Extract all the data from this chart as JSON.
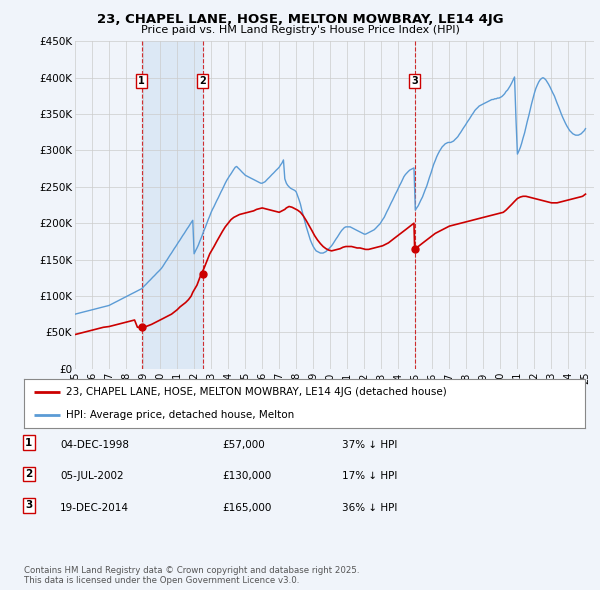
{
  "title": "23, CHAPEL LANE, HOSE, MELTON MOWBRAY, LE14 4JG",
  "subtitle": "Price paid vs. HM Land Registry's House Price Index (HPI)",
  "hpi_color": "#5b9bd5",
  "price_color": "#cc0000",
  "vline_color": "#cc0000",
  "background_color": "#f0f4fa",
  "plot_bg_color": "#f0f4fa",
  "shade_color": "#dce8f5",
  "grid_color": "#cccccc",
  "ylim": [
    0,
    450000
  ],
  "yticks": [
    0,
    50000,
    100000,
    150000,
    200000,
    250000,
    300000,
    350000,
    400000,
    450000
  ],
  "ytick_labels": [
    "£0",
    "£50K",
    "£100K",
    "£150K",
    "£200K",
    "£250K",
    "£300K",
    "£350K",
    "£400K",
    "£450K"
  ],
  "xlim_start": 1995.0,
  "xlim_end": 2025.5,
  "purchases": [
    {
      "date_num": 1998.92,
      "price": 57000,
      "label": "1"
    },
    {
      "date_num": 2002.51,
      "price": 130000,
      "label": "2"
    },
    {
      "date_num": 2014.96,
      "price": 165000,
      "label": "3"
    }
  ],
  "shade_x1": 1998.92,
  "shade_x2": 2002.51,
  "legend_price_label": "23, CHAPEL LANE, HOSE, MELTON MOWBRAY, LE14 4JG (detached house)",
  "legend_hpi_label": "HPI: Average price, detached house, Melton",
  "table_rows": [
    {
      "num": "1",
      "date": "04-DEC-1998",
      "price": "£57,000",
      "change": "37% ↓ HPI"
    },
    {
      "num": "2",
      "date": "05-JUL-2002",
      "price": "£130,000",
      "change": "17% ↓ HPI"
    },
    {
      "num": "3",
      "date": "19-DEC-2014",
      "price": "£165,000",
      "change": "36% ↓ HPI"
    }
  ],
  "footer": "Contains HM Land Registry data © Crown copyright and database right 2025.\nThis data is licensed under the Open Government Licence v3.0.",
  "hpi_data_years": [
    1995.0,
    1995.08,
    1995.17,
    1995.25,
    1995.33,
    1995.42,
    1995.5,
    1995.58,
    1995.67,
    1995.75,
    1995.83,
    1995.92,
    1996.0,
    1996.08,
    1996.17,
    1996.25,
    1996.33,
    1996.42,
    1996.5,
    1996.58,
    1996.67,
    1996.75,
    1996.83,
    1996.92,
    1997.0,
    1997.08,
    1997.17,
    1997.25,
    1997.33,
    1997.42,
    1997.5,
    1997.58,
    1997.67,
    1997.75,
    1997.83,
    1997.92,
    1998.0,
    1998.08,
    1998.17,
    1998.25,
    1998.33,
    1998.42,
    1998.5,
    1998.58,
    1998.67,
    1998.75,
    1998.83,
    1998.92,
    1999.0,
    1999.08,
    1999.17,
    1999.25,
    1999.33,
    1999.42,
    1999.5,
    1999.58,
    1999.67,
    1999.75,
    1999.83,
    1999.92,
    2000.0,
    2000.08,
    2000.17,
    2000.25,
    2000.33,
    2000.42,
    2000.5,
    2000.58,
    2000.67,
    2000.75,
    2000.83,
    2000.92,
    2001.0,
    2001.08,
    2001.17,
    2001.25,
    2001.33,
    2001.42,
    2001.5,
    2001.58,
    2001.67,
    2001.75,
    2001.83,
    2001.92,
    2002.0,
    2002.08,
    2002.17,
    2002.25,
    2002.33,
    2002.42,
    2002.5,
    2002.58,
    2002.67,
    2002.75,
    2002.83,
    2002.92,
    2003.0,
    2003.08,
    2003.17,
    2003.25,
    2003.33,
    2003.42,
    2003.5,
    2003.58,
    2003.67,
    2003.75,
    2003.83,
    2003.92,
    2004.0,
    2004.08,
    2004.17,
    2004.25,
    2004.33,
    2004.42,
    2004.5,
    2004.58,
    2004.67,
    2004.75,
    2004.83,
    2004.92,
    2005.0,
    2005.08,
    2005.17,
    2005.25,
    2005.33,
    2005.42,
    2005.5,
    2005.58,
    2005.67,
    2005.75,
    2005.83,
    2005.92,
    2006.0,
    2006.08,
    2006.17,
    2006.25,
    2006.33,
    2006.42,
    2006.5,
    2006.58,
    2006.67,
    2006.75,
    2006.83,
    2006.92,
    2007.0,
    2007.08,
    2007.17,
    2007.25,
    2007.33,
    2007.42,
    2007.5,
    2007.58,
    2007.67,
    2007.75,
    2007.83,
    2007.92,
    2008.0,
    2008.08,
    2008.17,
    2008.25,
    2008.33,
    2008.42,
    2008.5,
    2008.58,
    2008.67,
    2008.75,
    2008.83,
    2008.92,
    2009.0,
    2009.08,
    2009.17,
    2009.25,
    2009.33,
    2009.42,
    2009.5,
    2009.58,
    2009.67,
    2009.75,
    2009.83,
    2009.92,
    2010.0,
    2010.08,
    2010.17,
    2010.25,
    2010.33,
    2010.42,
    2010.5,
    2010.58,
    2010.67,
    2010.75,
    2010.83,
    2010.92,
    2011.0,
    2011.08,
    2011.17,
    2011.25,
    2011.33,
    2011.42,
    2011.5,
    2011.58,
    2011.67,
    2011.75,
    2011.83,
    2011.92,
    2012.0,
    2012.08,
    2012.17,
    2012.25,
    2012.33,
    2012.42,
    2012.5,
    2012.58,
    2012.67,
    2012.75,
    2012.83,
    2012.92,
    2013.0,
    2013.08,
    2013.17,
    2013.25,
    2013.33,
    2013.42,
    2013.5,
    2013.58,
    2013.67,
    2013.75,
    2013.83,
    2013.92,
    2014.0,
    2014.08,
    2014.17,
    2014.25,
    2014.33,
    2014.42,
    2014.5,
    2014.58,
    2014.67,
    2014.75,
    2014.83,
    2014.92,
    2015.0,
    2015.08,
    2015.17,
    2015.25,
    2015.33,
    2015.42,
    2015.5,
    2015.58,
    2015.67,
    2015.75,
    2015.83,
    2015.92,
    2016.0,
    2016.08,
    2016.17,
    2016.25,
    2016.33,
    2016.42,
    2016.5,
    2016.58,
    2016.67,
    2016.75,
    2016.83,
    2016.92,
    2017.0,
    2017.08,
    2017.17,
    2017.25,
    2017.33,
    2017.42,
    2017.5,
    2017.58,
    2017.67,
    2017.75,
    2017.83,
    2017.92,
    2018.0,
    2018.08,
    2018.17,
    2018.25,
    2018.33,
    2018.42,
    2018.5,
    2018.58,
    2018.67,
    2018.75,
    2018.83,
    2018.92,
    2019.0,
    2019.08,
    2019.17,
    2019.25,
    2019.33,
    2019.42,
    2019.5,
    2019.58,
    2019.67,
    2019.75,
    2019.83,
    2019.92,
    2020.0,
    2020.08,
    2020.17,
    2020.25,
    2020.33,
    2020.42,
    2020.5,
    2020.58,
    2020.67,
    2020.75,
    2020.83,
    2020.92,
    2021.0,
    2021.08,
    2021.17,
    2021.25,
    2021.33,
    2021.42,
    2021.5,
    2021.58,
    2021.67,
    2021.75,
    2021.83,
    2021.92,
    2022.0,
    2022.08,
    2022.17,
    2022.25,
    2022.33,
    2022.42,
    2022.5,
    2022.58,
    2022.67,
    2022.75,
    2022.83,
    2022.92,
    2023.0,
    2023.08,
    2023.17,
    2023.25,
    2023.33,
    2023.42,
    2023.5,
    2023.58,
    2023.67,
    2023.75,
    2023.83,
    2023.92,
    2024.0,
    2024.08,
    2024.17,
    2024.25,
    2024.33,
    2024.42,
    2024.5,
    2024.58,
    2024.67,
    2024.75,
    2024.83,
    2024.92,
    2025.0
  ],
  "hpi_data_values": [
    75000,
    75500,
    76000,
    76500,
    77000,
    77500,
    78000,
    78500,
    79000,
    79500,
    80000,
    80500,
    81000,
    81500,
    82000,
    82500,
    83000,
    83500,
    84000,
    84500,
    85000,
    85500,
    86000,
    86500,
    87000,
    88000,
    89000,
    90000,
    91000,
    92000,
    93000,
    94000,
    95000,
    96000,
    97000,
    98000,
    99000,
    100000,
    101000,
    102000,
    103000,
    104000,
    105000,
    106000,
    107000,
    108000,
    109000,
    110000,
    112000,
    114000,
    116000,
    118000,
    120000,
    122000,
    124000,
    126000,
    128000,
    130000,
    132000,
    134000,
    136000,
    138000,
    141000,
    144000,
    147000,
    150000,
    153000,
    156000,
    159000,
    162000,
    165000,
    168000,
    171000,
    174000,
    177000,
    180000,
    183000,
    186000,
    189000,
    192000,
    195000,
    198000,
    201000,
    204000,
    158000,
    162000,
    166000,
    170000,
    175000,
    180000,
    185000,
    190000,
    195000,
    200000,
    205000,
    210000,
    215000,
    219000,
    223000,
    227000,
    231000,
    235000,
    239000,
    243000,
    247000,
    251000,
    255000,
    259000,
    262000,
    265000,
    268000,
    271000,
    274000,
    277000,
    278000,
    276000,
    274000,
    272000,
    270000,
    268000,
    266000,
    265000,
    264000,
    263000,
    262000,
    261000,
    260000,
    259000,
    258000,
    257000,
    256000,
    255000,
    255000,
    256000,
    257000,
    259000,
    261000,
    263000,
    265000,
    267000,
    269000,
    271000,
    273000,
    275000,
    277000,
    280000,
    283000,
    287000,
    261000,
    255000,
    252000,
    250000,
    248000,
    247000,
    246000,
    245000,
    243000,
    238000,
    232000,
    226000,
    218000,
    210000,
    203000,
    196000,
    189000,
    183000,
    177000,
    172000,
    168000,
    165000,
    162000,
    161000,
    160000,
    159000,
    159000,
    159000,
    160000,
    161000,
    163000,
    165000,
    167000,
    169000,
    172000,
    175000,
    178000,
    181000,
    184000,
    187000,
    190000,
    192000,
    194000,
    195000,
    195000,
    195000,
    195000,
    194000,
    193000,
    192000,
    191000,
    190000,
    189000,
    188000,
    187000,
    186000,
    185000,
    185000,
    186000,
    187000,
    188000,
    189000,
    190000,
    191000,
    193000,
    195000,
    197000,
    199000,
    202000,
    205000,
    208000,
    212000,
    216000,
    220000,
    224000,
    228000,
    232000,
    236000,
    240000,
    244000,
    248000,
    252000,
    256000,
    260000,
    264000,
    267000,
    269000,
    271000,
    273000,
    274000,
    275000,
    276000,
    218000,
    221000,
    224000,
    228000,
    232000,
    236000,
    241000,
    246000,
    251000,
    257000,
    263000,
    269000,
    275000,
    281000,
    286000,
    291000,
    295000,
    299000,
    302000,
    305000,
    307000,
    309000,
    310000,
    311000,
    311000,
    311000,
    312000,
    313000,
    315000,
    317000,
    319000,
    322000,
    325000,
    328000,
    331000,
    334000,
    337000,
    340000,
    343000,
    346000,
    349000,
    352000,
    355000,
    357000,
    359000,
    361000,
    362000,
    363000,
    364000,
    365000,
    366000,
    367000,
    368000,
    369000,
    370000,
    370000,
    371000,
    371000,
    372000,
    372000,
    373000,
    374000,
    376000,
    378000,
    381000,
    383000,
    386000,
    389000,
    393000,
    397000,
    401000,
    340000,
    295000,
    299000,
    304000,
    310000,
    317000,
    324000,
    332000,
    340000,
    348000,
    356000,
    364000,
    372000,
    379000,
    385000,
    390000,
    394000,
    397000,
    399000,
    400000,
    399000,
    397000,
    394000,
    391000,
    387000,
    383000,
    379000,
    375000,
    370000,
    365000,
    360000,
    355000,
    350000,
    345000,
    341000,
    337000,
    333000,
    330000,
    327000,
    325000,
    323000,
    322000,
    321000,
    321000,
    321000,
    322000,
    323000,
    325000,
    327000,
    330000
  ],
  "price_data_years": [
    1995.0,
    1995.17,
    1995.33,
    1995.5,
    1995.67,
    1995.83,
    1996.0,
    1996.17,
    1996.33,
    1996.5,
    1996.67,
    1996.83,
    1997.0,
    1997.17,
    1997.33,
    1997.5,
    1997.67,
    1997.83,
    1998.0,
    1998.17,
    1998.33,
    1998.5,
    1998.67,
    1998.83,
    1998.92,
    1999.17,
    1999.33,
    1999.5,
    1999.67,
    1999.83,
    2000.0,
    2000.17,
    2000.33,
    2000.5,
    2000.67,
    2000.83,
    2001.0,
    2001.17,
    2001.33,
    2001.5,
    2001.67,
    2001.83,
    2001.92,
    2002.17,
    2002.33,
    2002.42,
    2002.58,
    2002.75,
    2002.92,
    2003.17,
    2003.33,
    2003.5,
    2003.67,
    2003.83,
    2004.0,
    2004.17,
    2004.33,
    2004.5,
    2004.67,
    2004.83,
    2005.0,
    2005.17,
    2005.33,
    2005.5,
    2005.67,
    2005.83,
    2006.0,
    2006.17,
    2006.33,
    2006.5,
    2006.67,
    2006.83,
    2007.0,
    2007.17,
    2007.33,
    2007.42,
    2007.58,
    2007.75,
    2007.92,
    2008.08,
    2008.25,
    2008.42,
    2008.58,
    2008.75,
    2008.92,
    2009.08,
    2009.25,
    2009.42,
    2009.58,
    2009.75,
    2009.92,
    2010.08,
    2010.25,
    2010.42,
    2010.58,
    2010.75,
    2010.92,
    2011.08,
    2011.25,
    2011.42,
    2011.58,
    2011.75,
    2011.92,
    2012.08,
    2012.25,
    2012.42,
    2012.58,
    2012.75,
    2012.92,
    2013.08,
    2013.25,
    2013.42,
    2013.58,
    2013.75,
    2013.92,
    2014.08,
    2014.25,
    2014.42,
    2014.58,
    2014.75,
    2014.92,
    2014.96,
    2015.17,
    2015.33,
    2015.5,
    2015.67,
    2015.83,
    2016.0,
    2016.17,
    2016.33,
    2016.5,
    2016.67,
    2016.83,
    2017.0,
    2017.17,
    2017.33,
    2017.5,
    2017.67,
    2017.83,
    2018.0,
    2018.17,
    2018.33,
    2018.5,
    2018.67,
    2018.83,
    2019.0,
    2019.17,
    2019.33,
    2019.5,
    2019.67,
    2019.83,
    2020.0,
    2020.17,
    2020.33,
    2020.5,
    2020.67,
    2020.83,
    2021.0,
    2021.17,
    2021.33,
    2021.5,
    2021.67,
    2021.83,
    2022.0,
    2022.17,
    2022.33,
    2022.5,
    2022.67,
    2022.83,
    2023.0,
    2023.17,
    2023.33,
    2023.5,
    2023.67,
    2023.83,
    2024.0,
    2024.17,
    2024.33,
    2024.5,
    2024.67,
    2024.83,
    2025.0
  ],
  "price_data_values": [
    47000,
    48000,
    49000,
    50000,
    51000,
    52000,
    53000,
    54000,
    55000,
    56000,
    57000,
    57500,
    58000,
    59000,
    60000,
    61000,
    62000,
    63000,
    64000,
    65000,
    66000,
    67000,
    57000,
    57000,
    57000,
    58000,
    59500,
    61000,
    63000,
    65000,
    67000,
    69000,
    71000,
    73000,
    75000,
    78000,
    81000,
    85000,
    88000,
    91000,
    95000,
    100000,
    105000,
    115000,
    125000,
    130000,
    138000,
    148000,
    158000,
    168000,
    175000,
    182000,
    189000,
    195000,
    200000,
    205000,
    208000,
    210000,
    212000,
    213000,
    214000,
    215000,
    216000,
    217000,
    219000,
    220000,
    221000,
    220000,
    219000,
    218000,
    217000,
    216000,
    215000,
    217000,
    219000,
    221000,
    223000,
    222000,
    220000,
    218000,
    215000,
    210000,
    204000,
    197000,
    190000,
    183000,
    177000,
    172000,
    168000,
    165000,
    163000,
    162000,
    163000,
    164000,
    165000,
    167000,
    168000,
    168000,
    168000,
    167000,
    166000,
    166000,
    165000,
    164000,
    164000,
    165000,
    166000,
    167000,
    168000,
    169000,
    171000,
    173000,
    176000,
    179000,
    182000,
    185000,
    188000,
    191000,
    194000,
    197000,
    200000,
    165000,
    168000,
    171000,
    174000,
    177000,
    180000,
    183000,
    186000,
    188000,
    190000,
    192000,
    194000,
    196000,
    197000,
    198000,
    199000,
    200000,
    201000,
    202000,
    203000,
    204000,
    205000,
    206000,
    207000,
    208000,
    209000,
    210000,
    211000,
    212000,
    213000,
    214000,
    215000,
    218000,
    222000,
    226000,
    230000,
    234000,
    236000,
    237000,
    237000,
    236000,
    235000,
    234000,
    233000,
    232000,
    231000,
    230000,
    229000,
    228000,
    228000,
    228000,
    229000,
    230000,
    231000,
    232000,
    233000,
    234000,
    235000,
    236000,
    237000,
    240000
  ],
  "xtick_years": [
    1995,
    1996,
    1997,
    1998,
    1999,
    2000,
    2001,
    2002,
    2003,
    2004,
    2005,
    2006,
    2007,
    2008,
    2009,
    2010,
    2011,
    2012,
    2013,
    2014,
    2015,
    2016,
    2017,
    2018,
    2019,
    2020,
    2021,
    2022,
    2023,
    2024,
    2025
  ]
}
